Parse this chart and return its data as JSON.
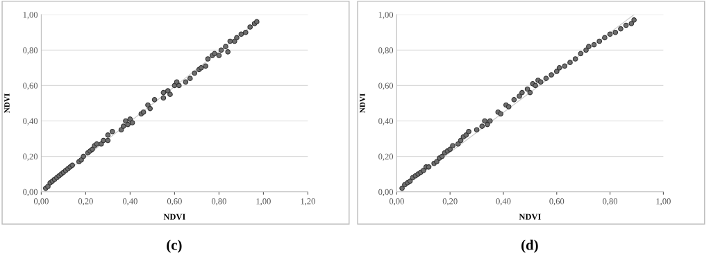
{
  "chart_data": [
    {
      "type": "scatter",
      "xlabel": "NDVI",
      "ylabel": "NDVI",
      "annotations": [
        "(c)"
      ],
      "marker": "circle",
      "grid": "y",
      "legend": false,
      "xlim": [
        0,
        1.2
      ],
      "ylim": [
        0,
        1.0
      ],
      "xticks": [
        {
          "value": 0,
          "label": "0,00"
        },
        {
          "value": 0.2,
          "label": "0,20"
        },
        {
          "value": 0.4,
          "label": "0,40"
        },
        {
          "value": 0.6,
          "label": "0,60"
        },
        {
          "value": 0.8,
          "label": "0,80"
        },
        {
          "value": 1.0,
          "label": "1,00"
        },
        {
          "value": 1.2,
          "label": "1,20"
        }
      ],
      "yticks": [
        {
          "value": 0,
          "label": "0,00"
        },
        {
          "value": 0.2,
          "label": "0,20"
        },
        {
          "value": 0.4,
          "label": "0,40"
        },
        {
          "value": 0.6,
          "label": "0,60"
        },
        {
          "value": 0.8,
          "label": "0,80"
        },
        {
          "value": 1.0,
          "label": "1,00"
        }
      ],
      "series": [
        {
          "type": "line",
          "marker": "none",
          "color": "#c8c8c8",
          "x": [
            0.02,
            0.98
          ],
          "values": [
            0.02,
            0.97
          ]
        },
        {
          "color": "#6e6e6e",
          "x": [
            0.02,
            0.03,
            0.04,
            0.05,
            0.06,
            0.07,
            0.08,
            0.09,
            0.1,
            0.11,
            0.12,
            0.13,
            0.14,
            0.17,
            0.18,
            0.19,
            0.21,
            0.22,
            0.23,
            0.24,
            0.25,
            0.27,
            0.28,
            0.3,
            0.3,
            0.32,
            0.36,
            0.37,
            0.38,
            0.39,
            0.4,
            0.41,
            0.45,
            0.46,
            0.48,
            0.49,
            0.51,
            0.55,
            0.55,
            0.57,
            0.58,
            0.6,
            0.61,
            0.62,
            0.65,
            0.67,
            0.69,
            0.71,
            0.72,
            0.74,
            0.75,
            0.77,
            0.78,
            0.8,
            0.81,
            0.83,
            0.84,
            0.85,
            0.87,
            0.88,
            0.9,
            0.92,
            0.94,
            0.96,
            0.97
          ],
          "values": [
            0.02,
            0.03,
            0.05,
            0.06,
            0.07,
            0.08,
            0.09,
            0.1,
            0.11,
            0.12,
            0.13,
            0.14,
            0.15,
            0.17,
            0.18,
            0.2,
            0.22,
            0.23,
            0.24,
            0.26,
            0.27,
            0.27,
            0.29,
            0.29,
            0.32,
            0.34,
            0.35,
            0.37,
            0.4,
            0.38,
            0.41,
            0.39,
            0.44,
            0.45,
            0.49,
            0.47,
            0.52,
            0.53,
            0.56,
            0.57,
            0.55,
            0.6,
            0.62,
            0.6,
            0.62,
            0.64,
            0.67,
            0.69,
            0.7,
            0.71,
            0.75,
            0.77,
            0.78,
            0.77,
            0.8,
            0.82,
            0.79,
            0.85,
            0.85,
            0.87,
            0.89,
            0.9,
            0.93,
            0.95,
            0.96
          ]
        }
      ]
    },
    {
      "type": "scatter",
      "xlabel": "NDVI",
      "ylabel": "NDVI",
      "annotations": [
        "(d)"
      ],
      "marker": "circle",
      "grid": "y",
      "legend": false,
      "xlim": [
        0,
        1.0
      ],
      "ylim": [
        0,
        1.0
      ],
      "xticks": [
        {
          "value": 0,
          "label": "0,00"
        },
        {
          "value": 0.2,
          "label": "0,20"
        },
        {
          "value": 0.4,
          "label": "0,40"
        },
        {
          "value": 0.6,
          "label": "0,60"
        },
        {
          "value": 0.8,
          "label": "0,80"
        },
        {
          "value": 1.0,
          "label": "1,00"
        }
      ],
      "yticks": [
        {
          "value": 0,
          "label": "0,00"
        },
        {
          "value": 0.2,
          "label": "0,20"
        },
        {
          "value": 0.4,
          "label": "0,40"
        },
        {
          "value": 0.6,
          "label": "0,60"
        },
        {
          "value": 0.8,
          "label": "0,80"
        },
        {
          "value": 1.0,
          "label": "1,00"
        }
      ],
      "series": [
        {
          "type": "line",
          "marker": "none",
          "color": "#c8c8c8",
          "x": [
            0.02,
            0.89
          ],
          "values": [
            0.02,
            1.0
          ]
        },
        {
          "color": "#6e6e6e",
          "x": [
            0.02,
            0.03,
            0.04,
            0.05,
            0.06,
            0.07,
            0.08,
            0.09,
            0.1,
            0.11,
            0.12,
            0.14,
            0.15,
            0.16,
            0.17,
            0.18,
            0.19,
            0.2,
            0.21,
            0.23,
            0.24,
            0.25,
            0.26,
            0.27,
            0.3,
            0.32,
            0.33,
            0.34,
            0.35,
            0.38,
            0.39,
            0.41,
            0.42,
            0.44,
            0.46,
            0.47,
            0.49,
            0.5,
            0.51,
            0.52,
            0.53,
            0.54,
            0.56,
            0.58,
            0.6,
            0.61,
            0.63,
            0.65,
            0.67,
            0.69,
            0.71,
            0.72,
            0.74,
            0.76,
            0.78,
            0.8,
            0.82,
            0.84,
            0.86,
            0.88,
            0.89
          ],
          "values": [
            0.02,
            0.04,
            0.05,
            0.06,
            0.08,
            0.09,
            0.1,
            0.11,
            0.12,
            0.14,
            0.14,
            0.16,
            0.17,
            0.19,
            0.2,
            0.22,
            0.23,
            0.24,
            0.26,
            0.27,
            0.29,
            0.31,
            0.32,
            0.34,
            0.35,
            0.37,
            0.4,
            0.38,
            0.4,
            0.45,
            0.44,
            0.49,
            0.48,
            0.52,
            0.54,
            0.56,
            0.58,
            0.56,
            0.61,
            0.6,
            0.63,
            0.62,
            0.64,
            0.66,
            0.68,
            0.7,
            0.71,
            0.73,
            0.75,
            0.78,
            0.8,
            0.82,
            0.83,
            0.85,
            0.87,
            0.89,
            0.9,
            0.92,
            0.94,
            0.95,
            0.97
          ]
        }
      ]
    }
  ]
}
